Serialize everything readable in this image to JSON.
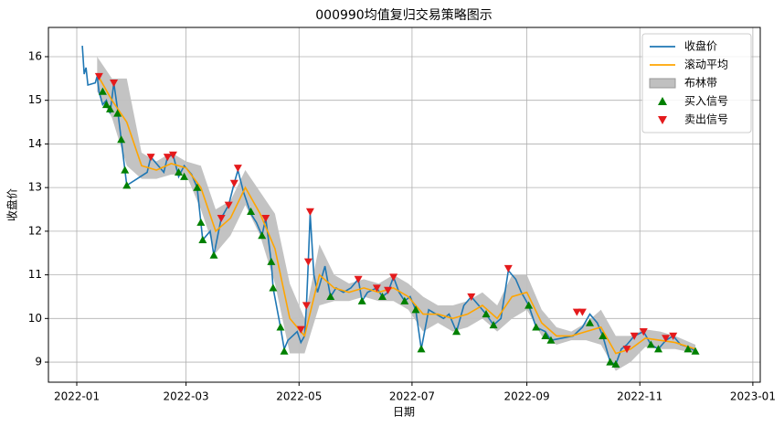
{
  "chart_data": {
    "type": "line",
    "title": "000990均值复归交易策略图示",
    "xlabel": "日期",
    "ylabel": "收盘价",
    "xlim": [
      -15.3,
      369
    ],
    "ylim": [
      8.54,
      16.67
    ],
    "xticks": [
      {
        "value": 0,
        "label": "2022-01"
      },
      {
        "value": 59,
        "label": "2022-03"
      },
      {
        "value": 120,
        "label": "2022-05"
      },
      {
        "value": 181,
        "label": "2022-07"
      },
      {
        "value": 243,
        "label": "2022-09"
      },
      {
        "value": 304,
        "label": "2022-11"
      },
      {
        "value": 365,
        "label": "2023-01"
      }
    ],
    "yticks": [
      9,
      10,
      11,
      12,
      13,
      14,
      15,
      16
    ],
    "grid": true,
    "legend": "upper right",
    "series": [
      {
        "name": "收盘价",
        "color": "#1f77b4",
        "style": "line",
        "x": [
          3,
          4,
          5,
          6,
          10,
          11,
          12,
          14,
          16,
          18,
          20,
          22,
          24,
          26,
          27,
          38,
          40,
          44,
          47,
          49,
          52,
          55,
          58,
          62,
          65,
          67,
          68,
          72,
          74,
          78,
          82,
          85,
          87,
          90,
          94,
          97,
          100,
          102,
          105,
          106,
          110,
          112,
          114,
          119,
          121,
          123,
          124,
          125,
          126,
          128,
          130,
          132,
          134,
          137,
          140,
          144,
          148,
          152,
          154,
          157,
          162,
          165,
          168,
          171,
          174,
          177,
          180,
          183,
          186,
          190,
          194,
          198,
          201,
          205,
          209,
          213,
          217,
          221,
          225,
          229,
          233,
          237,
          240,
          244,
          248,
          253,
          256,
          268,
          273,
          277,
          281,
          284,
          288,
          291,
          294,
          297,
          301,
          306,
          310,
          314,
          318,
          322,
          326,
          330,
          334
        ],
        "values": [
          16.25,
          15.6,
          15.75,
          15.35,
          15.4,
          15.55,
          15.2,
          14.9,
          15.0,
          14.7,
          15.4,
          14.8,
          14.1,
          13.4,
          13.05,
          13.35,
          13.7,
          13.5,
          13.35,
          13.7,
          13.75,
          13.25,
          13.5,
          13.3,
          13.0,
          12.2,
          11.8,
          12.0,
          11.45,
          12.3,
          12.6,
          13.1,
          13.4,
          12.9,
          12.4,
          12.2,
          11.9,
          12.3,
          11.3,
          10.7,
          9.8,
          9.3,
          9.5,
          9.7,
          9.45,
          9.6,
          10.3,
          11.3,
          12.4,
          11.0,
          10.6,
          10.9,
          11.2,
          10.5,
          10.7,
          10.6,
          10.7,
          10.9,
          10.4,
          10.6,
          10.7,
          10.5,
          10.6,
          10.95,
          10.6,
          10.4,
          10.5,
          10.2,
          9.3,
          10.2,
          10.1,
          10.0,
          10.1,
          9.7,
          10.3,
          10.5,
          10.3,
          10.1,
          9.85,
          10.0,
          11.1,
          10.9,
          10.6,
          10.3,
          9.8,
          9.7,
          9.5,
          9.6,
          9.8,
          10.1,
          9.9,
          9.6,
          9.0,
          8.95,
          9.3,
          9.4,
          9.6,
          9.7,
          9.4,
          9.3,
          9.5,
          9.6,
          9.4,
          9.35,
          9.25
        ]
      },
      {
        "name": "滚动平均",
        "color": "#ffa500",
        "style": "line",
        "x": [
          11,
          19,
          27,
          35,
          43,
          51,
          59,
          67,
          75,
          83,
          91,
          99,
          107,
          115,
          123,
          131,
          139,
          147,
          155,
          163,
          171,
          179,
          187,
          195,
          203,
          211,
          219,
          227,
          235,
          243,
          251,
          259,
          267,
          275,
          283,
          291,
          299,
          307,
          315,
          323,
          334
        ],
        "values": [
          15.6,
          15.0,
          14.5,
          13.5,
          13.4,
          13.55,
          13.45,
          13.0,
          12.0,
          12.3,
          13.0,
          12.4,
          11.6,
          10.0,
          9.6,
          11.0,
          10.7,
          10.6,
          10.7,
          10.6,
          10.7,
          10.5,
          10.1,
          10.1,
          10.0,
          10.1,
          10.3,
          10.0,
          10.5,
          10.6,
          9.9,
          9.6,
          9.6,
          9.7,
          9.8,
          9.2,
          9.3,
          9.55,
          9.5,
          9.45,
          9.3
        ]
      },
      {
        "name": "布林带",
        "color": "#c0c0c0",
        "style": "band",
        "x": [
          11,
          19,
          27,
          35,
          43,
          51,
          59,
          67,
          75,
          83,
          91,
          99,
          107,
          115,
          123,
          131,
          139,
          147,
          155,
          163,
          171,
          179,
          187,
          195,
          203,
          211,
          219,
          227,
          235,
          243,
          251,
          259,
          267,
          275,
          283,
          291,
          299,
          307,
          315,
          323,
          334
        ],
        "upper": [
          16.0,
          15.5,
          15.5,
          13.8,
          13.6,
          13.8,
          13.6,
          13.5,
          12.5,
          12.7,
          13.4,
          12.9,
          12.4,
          10.8,
          10.0,
          11.7,
          11.0,
          10.8,
          10.9,
          10.8,
          11.0,
          10.8,
          10.5,
          10.3,
          10.3,
          10.4,
          10.6,
          10.3,
          11.0,
          11.0,
          10.2,
          9.8,
          9.7,
          9.9,
          10.2,
          9.6,
          9.6,
          9.75,
          9.7,
          9.6,
          9.4
        ],
        "lower": [
          15.2,
          14.6,
          13.5,
          13.2,
          13.2,
          13.3,
          13.3,
          12.5,
          11.5,
          11.9,
          12.6,
          11.9,
          10.8,
          9.2,
          9.2,
          10.3,
          10.4,
          10.4,
          10.5,
          10.4,
          10.4,
          10.2,
          9.7,
          9.9,
          9.7,
          9.8,
          10.0,
          9.7,
          10.0,
          10.2,
          9.6,
          9.4,
          9.5,
          9.5,
          9.4,
          8.8,
          9.0,
          9.35,
          9.3,
          9.3,
          9.2
        ]
      },
      {
        "name": "买入信号",
        "color": "#008000",
        "style": "marker",
        "marker": "^",
        "x": [
          14,
          16,
          18,
          22,
          24,
          26,
          27,
          55,
          58,
          65,
          67,
          68,
          74,
          94,
          100,
          105,
          106,
          110,
          112,
          137,
          154,
          165,
          177,
          183,
          186,
          205,
          221,
          225,
          244,
          248,
          253,
          256,
          277,
          284,
          288,
          291,
          310,
          314,
          330,
          334
        ],
        "values": [
          15.2,
          14.9,
          14.8,
          14.7,
          14.1,
          13.4,
          13.05,
          13.35,
          13.25,
          13.0,
          12.2,
          11.8,
          11.45,
          12.45,
          11.9,
          11.3,
          10.7,
          9.8,
          9.25,
          10.5,
          10.4,
          10.5,
          10.4,
          10.2,
          9.3,
          9.7,
          10.1,
          9.85,
          10.3,
          9.8,
          9.6,
          9.5,
          9.9,
          9.6,
          9.0,
          8.95,
          9.4,
          9.3,
          9.3,
          9.25
        ]
      },
      {
        "name": "卖出信号",
        "color": "#e41a1c",
        "style": "marker",
        "marker": "v",
        "x": [
          12,
          20,
          40,
          49,
          52,
          78,
          82,
          85,
          87,
          102,
          121,
          124,
          125,
          126,
          152,
          162,
          168,
          171,
          213,
          233,
          270,
          273,
          297,
          301,
          306,
          318,
          322
        ],
        "values": [
          15.55,
          15.4,
          13.7,
          13.7,
          13.75,
          12.3,
          12.6,
          13.1,
          13.45,
          12.3,
          9.75,
          10.3,
          11.3,
          12.45,
          10.9,
          10.7,
          10.65,
          10.95,
          10.5,
          11.15,
          10.15,
          10.15,
          9.3,
          9.6,
          9.7,
          9.55,
          9.6
        ]
      }
    ]
  }
}
